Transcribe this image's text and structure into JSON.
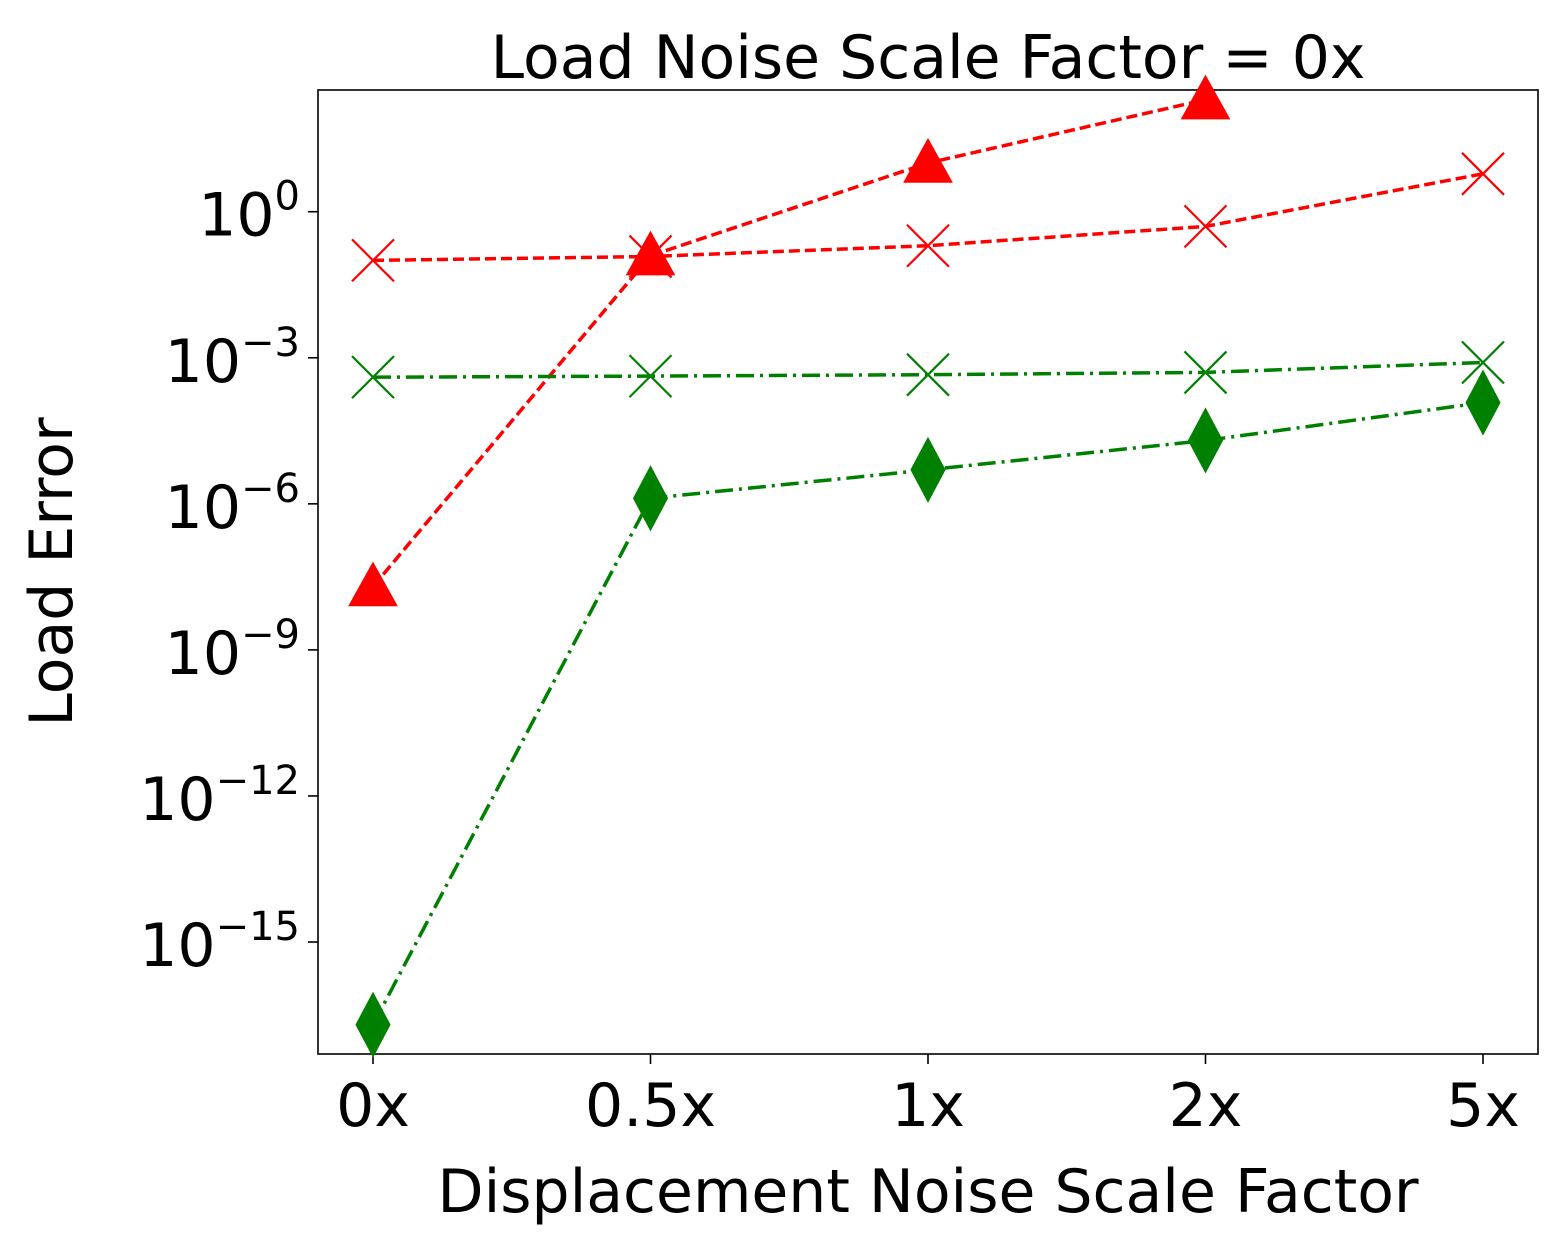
{
  "chart_data": {
    "type": "line",
    "title": "Load Noise Scale Factor = 0x",
    "xlabel": "Displacement Noise Scale Factor",
    "ylabel": "Load Error",
    "yscale": "log",
    "ylim_log10": [
      -17.3,
      2.5
    ],
    "categories": [
      "0x",
      "0.5x",
      "1x",
      "2x",
      "5x"
    ],
    "yticks": [
      {
        "base": "10",
        "exp": "0",
        "log10": 0
      },
      {
        "base": "10",
        "exp": "−3",
        "log10": -3
      },
      {
        "base": "10",
        "exp": "−6",
        "log10": -6
      },
      {
        "base": "10",
        "exp": "−9",
        "log10": -9
      },
      {
        "base": "10",
        "exp": "−12",
        "log10": -12
      },
      {
        "base": "10",
        "exp": "−15",
        "log10": -15
      }
    ],
    "series": [
      {
        "name": "red-triangle",
        "color": "#ff0000",
        "marker": "triangle",
        "linestyle": "dashed",
        "values": [
          2e-08,
          0.125,
          10,
          200,
          null
        ]
      },
      {
        "name": "red-x",
        "color": "#ff0000",
        "marker": "x",
        "linestyle": "dashed",
        "values": [
          0.1,
          0.12,
          0.2,
          0.5,
          6
        ]
      },
      {
        "name": "green-x",
        "color": "#008000",
        "marker": "x",
        "linestyle": "dashdot",
        "values": [
          0.0004,
          0.00042,
          0.00045,
          0.0005,
          0.0008
        ]
      },
      {
        "name": "green-diamond",
        "color": "#008000",
        "marker": "diamond",
        "linestyle": "dashdot",
        "values": [
          2e-17,
          1.3e-06,
          5e-06,
          2e-05,
          0.00012
        ]
      }
    ]
  }
}
